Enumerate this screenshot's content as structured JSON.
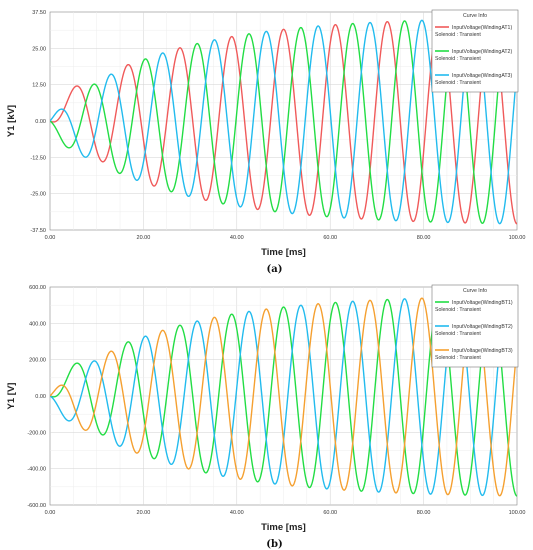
{
  "chart_data": [
    {
      "id": "a",
      "type": "line",
      "panel_label": "(a)",
      "xlabel": "Time [ms]",
      "ylabel": "Y1 [kV]",
      "xlim": [
        0,
        100
      ],
      "ylim": [
        -37.5,
        37.5
      ],
      "x_ticks": [
        "0.00",
        "20.00",
        "40.00",
        "60.00",
        "80.00",
        "100.00"
      ],
      "y_ticks": [
        "37.50",
        "25.00",
        "12.50",
        "0.00",
        "-12.50",
        "-25.00",
        "-37.50"
      ],
      "grid": true,
      "legend": {
        "title": "Curve Info",
        "placement": "top-right",
        "entries": [
          {
            "name": "InputVoltage(WindingAT1)",
            "sub": "Solenoid : Transient",
            "color": "#f05a5a"
          },
          {
            "name": "InputVoltage(WindingAT2)",
            "sub": "Solenoid : Transient",
            "color": "#22dd44"
          },
          {
            "name": "InputVoltage(WindingAT3)",
            "sub": "Solenoid : Transient",
            "color": "#22bbee"
          }
        ]
      },
      "signal": {
        "frequency_hz": 90,
        "amplitude_start": 3,
        "amplitude_end": 36,
        "rise_tau_ms": 25
      },
      "series": [
        {
          "name": "InputVoltage(WindingAT1)",
          "color": "#f05a5a",
          "phase_deg": -90
        },
        {
          "name": "InputVoltage(WindingAT2)",
          "color": "#22dd44",
          "phase_deg": 150
        },
        {
          "name": "InputVoltage(WindingAT3)",
          "color": "#22bbee",
          "phase_deg": 30
        }
      ]
    },
    {
      "id": "b",
      "type": "line",
      "panel_label": "(b)",
      "xlabel": "Time [ms]",
      "ylabel": "Y1 [V]",
      "xlim": [
        0,
        100
      ],
      "ylim": [
        -600,
        600
      ],
      "x_ticks": [
        "0.00",
        "20.00",
        "40.00",
        "60.00",
        "80.00",
        "100.00"
      ],
      "y_ticks": [
        "600.00",
        "400.00",
        "200.00",
        "0.00",
        "-200.00",
        "-400.00",
        "-600.00"
      ],
      "grid": true,
      "legend": {
        "title": "Curve Info",
        "placement": "top-right",
        "entries": [
          {
            "name": "InputVoltage(WindingBT1)",
            "sub": "Solenoid : Transient",
            "color": "#22dd44"
          },
          {
            "name": "InputVoltage(WindingBT2)",
            "sub": "Solenoid : Transient",
            "color": "#22bbee"
          },
          {
            "name": "InputVoltage(WindingBT3)",
            "sub": "Solenoid : Transient",
            "color": "#f5a030"
          }
        ]
      },
      "signal": {
        "frequency_hz": 90,
        "amplitude_start": 40,
        "amplitude_end": 560,
        "rise_tau_ms": 25
      },
      "series": [
        {
          "name": "InputVoltage(WindingBT1)",
          "color": "#22dd44",
          "phase_deg": -90
        },
        {
          "name": "InputVoltage(WindingBT2)",
          "color": "#22bbee",
          "phase_deg": 150
        },
        {
          "name": "InputVoltage(WindingBT3)",
          "color": "#f5a030",
          "phase_deg": 30
        }
      ]
    }
  ]
}
